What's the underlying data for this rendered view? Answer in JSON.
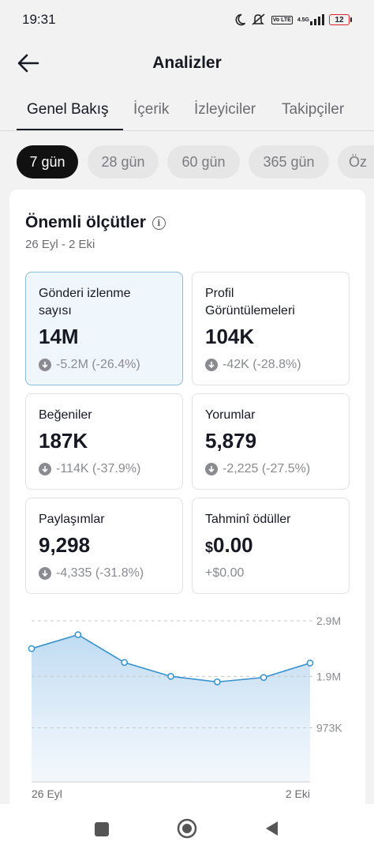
{
  "status": {
    "time": "19:31",
    "network": "4.5G",
    "volte": "Vo LTE",
    "battery": "12"
  },
  "header": {
    "title": "Analizler"
  },
  "tabs": [
    {
      "label": "Genel Bakış",
      "active": true
    },
    {
      "label": "İçerik",
      "active": false
    },
    {
      "label": "İzleyiciler",
      "active": false
    },
    {
      "label": "Takipçiler",
      "active": false
    }
  ],
  "ranges": [
    {
      "label": "7 gün",
      "active": true
    },
    {
      "label": "28 gün",
      "active": false
    },
    {
      "label": "60 gün",
      "active": false
    },
    {
      "label": "365 gün",
      "active": false
    },
    {
      "label": "Öz",
      "active": false
    }
  ],
  "key_metrics": {
    "title": "Önemli ölçütler",
    "date_range": "26 Eyl - 2 Eki",
    "items": [
      {
        "label": "Gönderi izlenme sayısı",
        "value": "14M",
        "change": "-5.2M (-26.4%)",
        "selected": true
      },
      {
        "label": "Profil Görüntülemeleri",
        "value": "104K",
        "change": "-42K (-28.8%)",
        "selected": false
      },
      {
        "label": "Beğeniler",
        "value": "187K",
        "change": "-114K (-37.9%)",
        "selected": false
      },
      {
        "label": "Yorumlar",
        "value": "5,879",
        "change": "-2,225 (-27.5%)",
        "selected": false
      },
      {
        "label": "Paylaşımlar",
        "value": "9,298",
        "change": "-4,335 (-31.8%)",
        "selected": false
      },
      {
        "label": "Tahminî ödüller",
        "currency": "$",
        "value": "0.00",
        "change": "+$0.00",
        "selected": false
      }
    ]
  },
  "colors": {
    "accent": "#3591cf",
    "fill": "#cfe5f6",
    "selected_bg": "#f0f7fc",
    "selected_border": "#86bdd9"
  },
  "icons": {
    "back": "arrow-left-icon",
    "info": "info-icon",
    "down": "arrow-down-circle-icon"
  },
  "chart_data": {
    "type": "area",
    "x": [
      "26 Eyl",
      "27 Eyl",
      "28 Eyl",
      "29 Eyl",
      "30 Eyl",
      "1 Eki",
      "2 Eki"
    ],
    "x_tick_labels": [
      "26 Eyl",
      "2 Eki"
    ],
    "series": [
      {
        "values": [
          2.4,
          2.65,
          2.15,
          1.9,
          1.8,
          1.88,
          2.14
        ]
      }
    ],
    "y_unit": "M",
    "y_ticks": [
      "2.9M",
      "1.9M",
      "973K"
    ],
    "y_tick_values": [
      2.9,
      1.9,
      0.973
    ],
    "ylim": [
      0,
      2.9
    ],
    "grid": true
  },
  "nav": {
    "items": [
      "square-icon",
      "home-circle-icon",
      "back-triangle-icon"
    ]
  }
}
